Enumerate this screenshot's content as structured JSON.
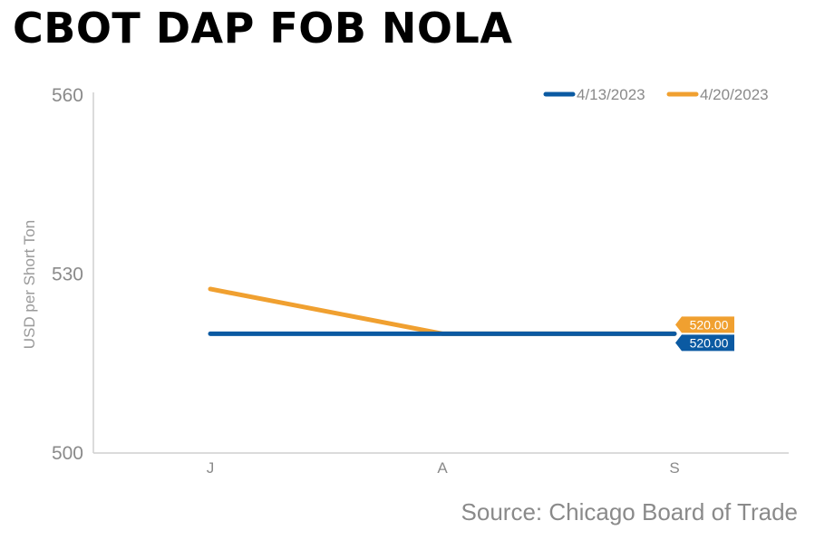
{
  "title": "CBOT DAP FOB NOLA",
  "source": "Source: Chicago Board of Trade",
  "chart_data": {
    "type": "line",
    "title": "CBOT DAP FOB NOLA",
    "ylabel": "USD per Short Ton",
    "xlabel": "",
    "categories": [
      "J",
      "A",
      "S"
    ],
    "ylim": [
      500,
      560
    ],
    "yticks": [
      500,
      530,
      560
    ],
    "grid": false,
    "legend_position": "top-right",
    "series": [
      {
        "name": "4/13/2023",
        "color": "#0b5aa2",
        "values": [
          520,
          520,
          520
        ],
        "end_label": "520.00"
      },
      {
        "name": "4/20/2023",
        "color": "#f0a030",
        "values": [
          527.5,
          520,
          520
        ],
        "end_label": "520.00"
      }
    ]
  }
}
